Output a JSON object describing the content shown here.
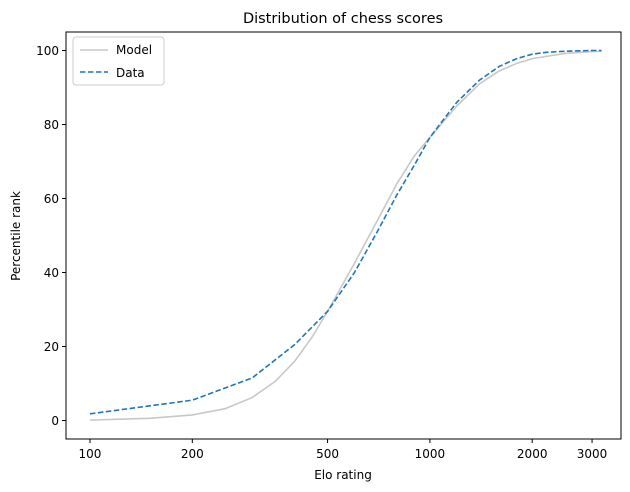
{
  "chart_data": {
    "type": "line",
    "title": "Distribution of chess scores",
    "xlabel": "Elo rating",
    "ylabel": "Percentile rank",
    "x_scale": "log",
    "xlim": [
      85,
      3650
    ],
    "ylim": [
      -5,
      105
    ],
    "x_ticks": [
      100,
      200,
      500,
      1000,
      2000,
      3000
    ],
    "x_tick_labels": [
      "100",
      "200",
      "500",
      "1000",
      "2000",
      "3000"
    ],
    "y_ticks": [
      0,
      20,
      40,
      60,
      80,
      100
    ],
    "y_tick_labels": [
      "0",
      "20",
      "40",
      "60",
      "80",
      "100"
    ],
    "grid": false,
    "legend_position": "top-left",
    "series": [
      {
        "name": "Model",
        "color": "#c8c8c8",
        "style": "solid",
        "x": [
          100,
          150,
          200,
          250,
          300,
          350,
          400,
          450,
          500,
          600,
          700,
          800,
          900,
          1000,
          1200,
          1400,
          1600,
          1800,
          2000,
          2500,
          3000,
          3200
        ],
        "y": [
          0.1,
          0.6,
          1.5,
          3.2,
          6.2,
          10.5,
          16,
          22.5,
          29.5,
          42.5,
          54,
          64,
          71.5,
          76.5,
          85,
          91,
          94.5,
          96.5,
          97.8,
          99.2,
          99.7,
          99.8
        ]
      },
      {
        "name": "Data",
        "color": "#1f77b4",
        "style": "dashed",
        "x": [
          100,
          200,
          300,
          400,
          500,
          600,
          700,
          800,
          900,
          1000,
          1200,
          1400,
          1600,
          1800,
          2000,
          2200,
          2500,
          3000,
          3200
        ],
        "y": [
          1.8,
          5.5,
          11.5,
          20.5,
          29.5,
          40,
          51,
          61,
          69,
          76.5,
          86,
          92,
          95.7,
          97.8,
          99,
          99.5,
          99.8,
          100,
          100
        ]
      }
    ]
  }
}
